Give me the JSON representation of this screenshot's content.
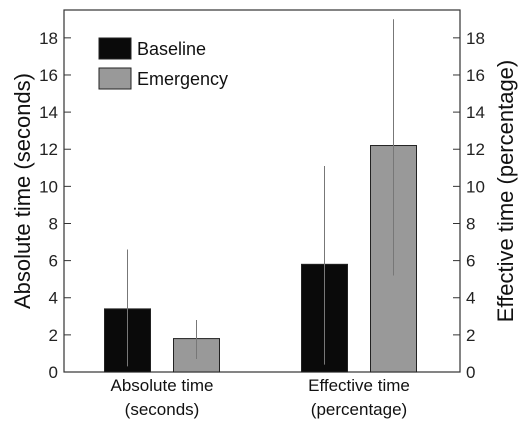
{
  "chart_data": {
    "type": "bar",
    "categories": [
      "Absolute time\n(seconds)",
      "Effective time\n(percentage)"
    ],
    "series": [
      {
        "name": "Baseline",
        "color": "#0a0a0a",
        "values": [
          3.4,
          5.8
        ],
        "error_low": [
          0.3,
          0.4
        ],
        "error_high": [
          6.6,
          11.1
        ]
      },
      {
        "name": "Emergency",
        "color": "#999999",
        "values": [
          1.8,
          12.2
        ],
        "error_low": [
          0.7,
          5.2
        ],
        "error_high": [
          2.8,
          19.0
        ]
      }
    ],
    "ylabel_left": "Absolute time (seconds)",
    "ylabel_right": "Effective time (percentage)",
    "ylim": [
      0,
      19.5
    ],
    "yticks": [
      0,
      2,
      4,
      6,
      8,
      10,
      12,
      14,
      16,
      18
    ],
    "grid": false,
    "legend_position": "top-left"
  }
}
